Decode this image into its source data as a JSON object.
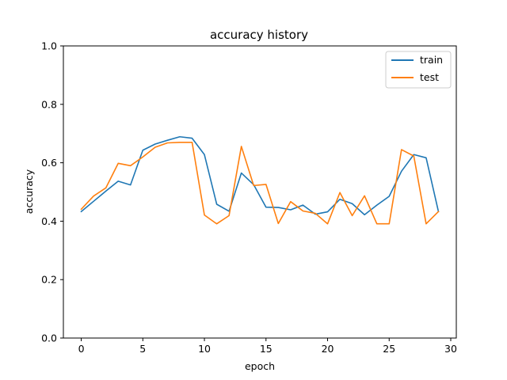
{
  "chart_data": {
    "type": "line",
    "title": "accuracy history",
    "xlabel": "epoch",
    "ylabel": "accuracy",
    "xlim": [
      -1.45,
      30.45
    ],
    "ylim": [
      0.0,
      1.0
    ],
    "xticks": [
      0,
      5,
      10,
      15,
      20,
      25,
      30
    ],
    "yticks": [
      0.0,
      0.2,
      0.4,
      0.6,
      0.8,
      1.0
    ],
    "xtick_labels": [
      "0",
      "5",
      "10",
      "15",
      "20",
      "25",
      "30"
    ],
    "ytick_labels": [
      "0.0",
      "0.2",
      "0.4",
      "0.6",
      "0.8",
      "1.0"
    ],
    "grid": false,
    "legend_position": "top-right",
    "x": [
      0,
      1,
      2,
      3,
      4,
      5,
      6,
      7,
      8,
      9,
      10,
      11,
      12,
      13,
      14,
      15,
      16,
      17,
      18,
      19,
      20,
      21,
      22,
      23,
      24,
      25,
      26,
      27,
      28,
      29
    ],
    "series": [
      {
        "name": "train",
        "color": "#1f77b4",
        "values": [
          0.433,
          0.468,
          0.503,
          0.537,
          0.524,
          0.643,
          0.664,
          0.677,
          0.689,
          0.684,
          0.628,
          0.458,
          0.434,
          0.565,
          0.525,
          0.448,
          0.447,
          0.439,
          0.455,
          0.424,
          0.432,
          0.475,
          0.46,
          0.422,
          0.455,
          0.485,
          0.571,
          0.628,
          0.617,
          0.433
        ]
      },
      {
        "name": "test",
        "color": "#ff7f0e",
        "values": [
          0.441,
          0.486,
          0.514,
          0.598,
          0.59,
          0.62,
          0.653,
          0.668,
          0.67,
          0.67,
          0.421,
          0.391,
          0.419,
          0.656,
          0.522,
          0.526,
          0.392,
          0.467,
          0.435,
          0.427,
          0.391,
          0.498,
          0.419,
          0.487,
          0.391,
          0.391,
          0.645,
          0.623,
          0.391,
          0.433
        ]
      }
    ]
  }
}
